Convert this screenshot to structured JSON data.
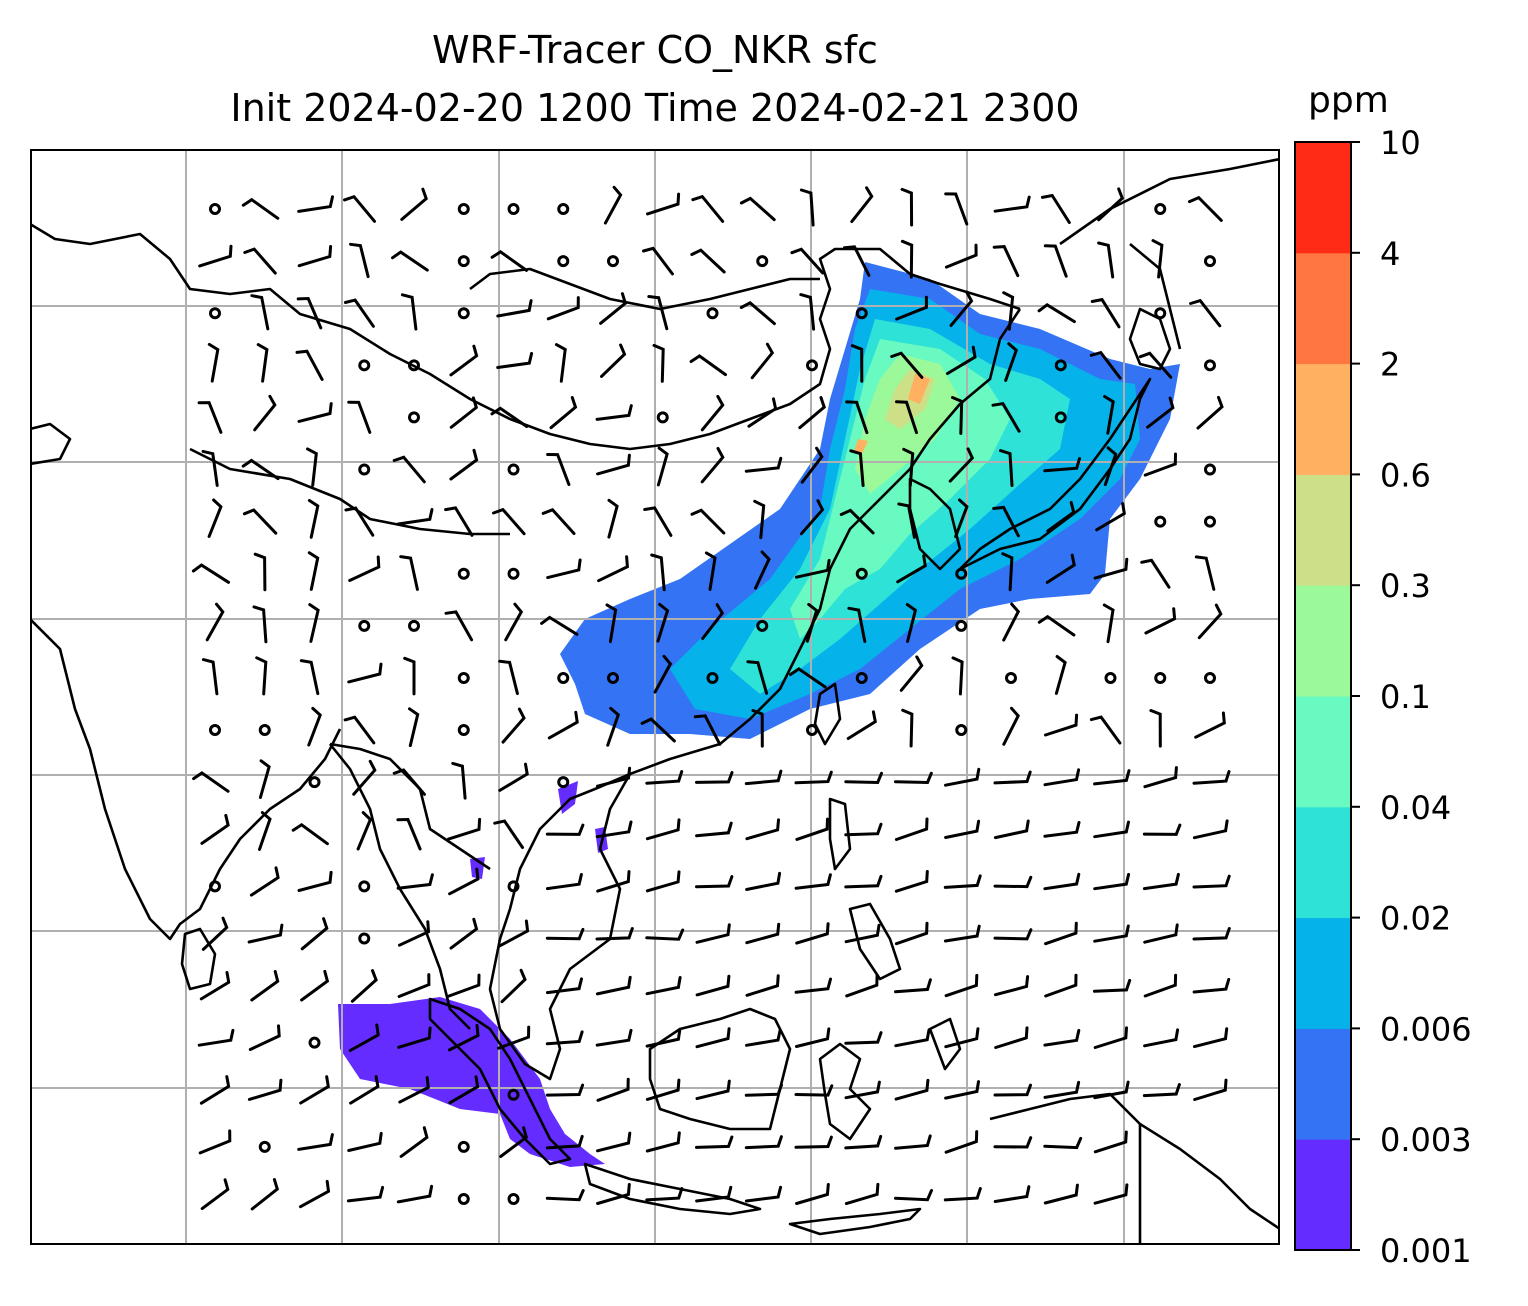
{
  "title": {
    "line1": "WRF-Tracer CO_NKR sfc",
    "line2": "Init 2024-02-20 1200 Time 2024-02-21 2300"
  },
  "colorbar": {
    "units": "ppm",
    "levels": [
      "0.001",
      "0.003",
      "0.006",
      "0.02",
      "0.04",
      "0.1",
      "0.3",
      "0.6",
      "2",
      "4",
      "10"
    ],
    "colors": [
      "#642cff",
      "#3474f4",
      "#06b2ea",
      "#2ee2d8",
      "#68fac0",
      "#9cf99a",
      "#cde087",
      "#ffb060",
      "#ff7640",
      "#ff2b16"
    ]
  },
  "map": {
    "gridlines": true,
    "gridline_color": "#b0b0b0",
    "coastline_color": "#000000",
    "barb_color": "#000000"
  }
}
